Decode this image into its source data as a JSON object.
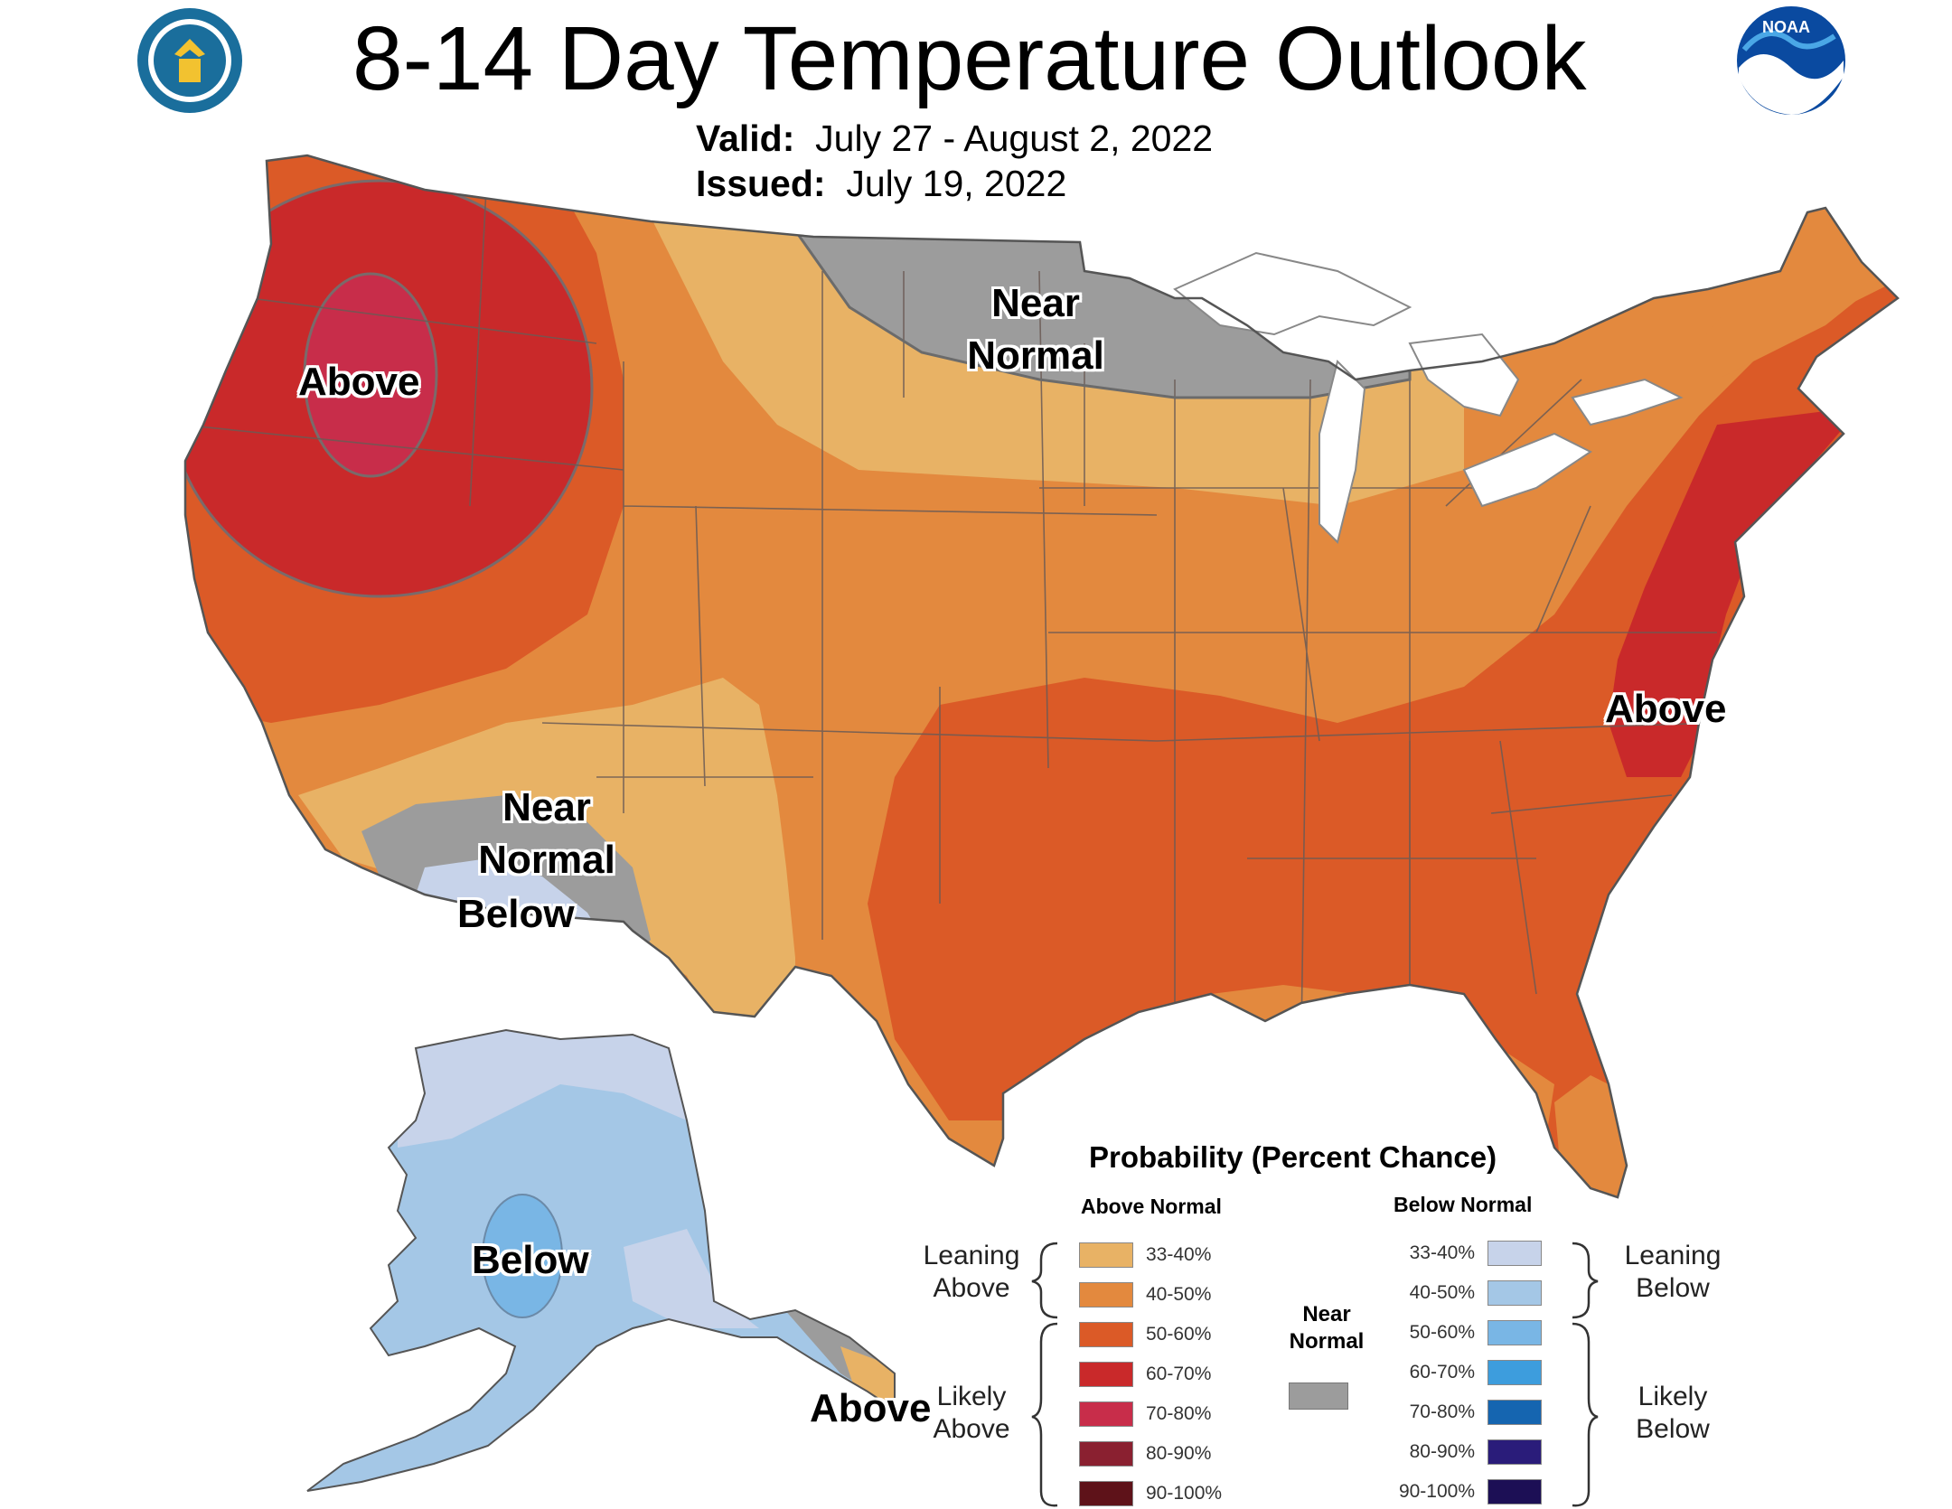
{
  "header": {
    "title": "8-14 Day Temperature Outlook",
    "valid_label": "Valid:",
    "valid_value": "July 27 - August 2, 2022",
    "issued_label": "Issued:",
    "issued_value": "July 19, 2022"
  },
  "logos": {
    "left_icon": "commerce-seal-icon",
    "right_icon": "noaa-logo-icon",
    "right_text": "NOAA"
  },
  "regions": {
    "northwest_above": "Above",
    "north_central_near_normal_1": "Near",
    "north_central_near_normal_2": "Normal",
    "southwest_near_normal_1": "Near",
    "southwest_near_normal_2": "Normal",
    "southwest_below": "Below",
    "east_above": "Above",
    "alaska_below": "Below",
    "alaska_panhandle_above": "Above"
  },
  "legend": {
    "title": "Probability (Percent Chance)",
    "above_header": "Above Normal",
    "below_header": "Below Normal",
    "near_normal_1": "Near",
    "near_normal_2": "Normal",
    "leaning_above_1": "Leaning",
    "leaning_above_2": "Above",
    "likely_above_1": "Likely",
    "likely_above_2": "Above",
    "leaning_below_1": "Leaning",
    "leaning_below_2": "Below",
    "likely_below_1": "Likely",
    "likely_below_2": "Below",
    "above": [
      {
        "label": "33-40%",
        "color": "#e8b265"
      },
      {
        "label": "40-50%",
        "color": "#e3893e"
      },
      {
        "label": "50-60%",
        "color": "#db5a27"
      },
      {
        "label": "60-70%",
        "color": "#c9292a"
      },
      {
        "label": "70-80%",
        "color": "#c82d4a"
      },
      {
        "label": "80-90%",
        "color": "#8a2030"
      },
      {
        "label": "90-100%",
        "color": "#5e1219"
      }
    ],
    "below": [
      {
        "label": "33-40%",
        "color": "#c7d3ea"
      },
      {
        "label": "40-50%",
        "color": "#a4c7e6"
      },
      {
        "label": "50-60%",
        "color": "#79b6e5"
      },
      {
        "label": "60-70%",
        "color": "#3d9ddd"
      },
      {
        "label": "70-80%",
        "color": "#1565b0"
      },
      {
        "label": "80-90%",
        "color": "#2a1c7a"
      },
      {
        "label": "90-100%",
        "color": "#1c0f55"
      }
    ],
    "near_color": "#9c9c9c"
  },
  "colors": {
    "lean_above": "#e8b265",
    "above_40": "#e3893e",
    "above_50": "#db5a27",
    "above_60": "#c9292a",
    "above_70": "#c82d4a",
    "near": "#9c9c9c",
    "below_33": "#c7d3ea",
    "below_40": "#a4c7e6",
    "below_50": "#79b6e5"
  }
}
